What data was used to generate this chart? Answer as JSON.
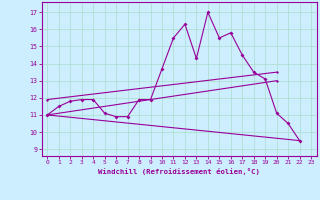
{
  "xlabel": "Windchill (Refroidissement éolien,°C)",
  "bg_color": "#cceeff",
  "line_color": "#990099",
  "grid_color": "#aaddcc",
  "x_ticks": [
    0,
    1,
    2,
    3,
    4,
    5,
    6,
    7,
    8,
    9,
    10,
    11,
    12,
    13,
    14,
    15,
    16,
    17,
    18,
    19,
    20,
    21,
    22,
    23
  ],
  "y_ticks": [
    9,
    10,
    11,
    12,
    13,
    14,
    15,
    16,
    17
  ],
  "xlim": [
    -0.5,
    23.5
  ],
  "ylim": [
    8.6,
    17.6
  ],
  "series": [
    {
      "x": [
        0,
        1,
        2,
        3,
        4,
        5,
        6,
        7,
        8,
        9,
        10,
        11,
        12,
        13,
        14,
        15,
        16,
        17,
        18,
        19,
        20,
        21,
        22
      ],
      "y": [
        11.0,
        11.5,
        11.8,
        11.9,
        11.9,
        11.1,
        10.9,
        10.9,
        11.9,
        11.9,
        13.7,
        15.5,
        16.3,
        14.3,
        17.0,
        15.5,
        15.8,
        14.5,
        13.5,
        13.1,
        11.1,
        10.5,
        9.5
      ]
    },
    {
      "x": [
        0,
        20
      ],
      "y": [
        11.9,
        13.5
      ]
    },
    {
      "x": [
        0,
        20
      ],
      "y": [
        11.0,
        13.0
      ]
    },
    {
      "x": [
        0,
        22
      ],
      "y": [
        11.0,
        9.5
      ]
    }
  ]
}
